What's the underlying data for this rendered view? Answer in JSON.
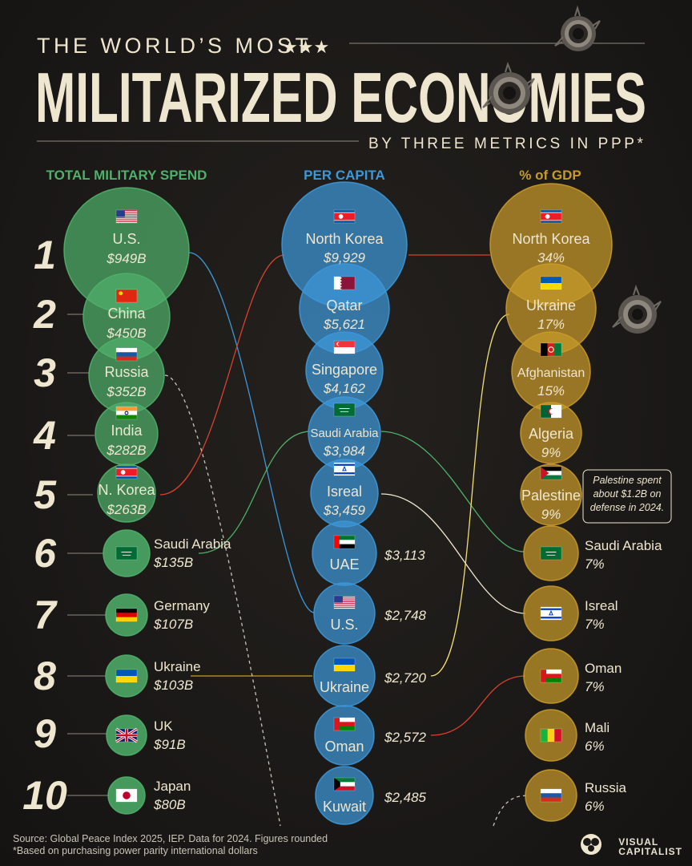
{
  "header": {
    "kicker": "THE WORLD’S MOST",
    "stars": "★★★",
    "title": "MILITARIZED ECONOMIES",
    "subtitle": "BY THREE METRICS IN PPP*"
  },
  "colors": {
    "spend": "#4fb06a",
    "percap": "#3d97d8",
    "gdp": "#c89a2a",
    "cream": "#efe6cf",
    "background": "#1b1917"
  },
  "columns": {
    "spend": "TOTAL MILITARY SPEND",
    "percap": "PER CAPITA",
    "gdp": "% of GDP"
  },
  "ranks": [
    "1",
    "2",
    "3",
    "4",
    "5",
    "6",
    "7",
    "8",
    "9",
    "10"
  ],
  "spend": [
    {
      "country": "U.S.",
      "value": "$949B",
      "flag": "flag-us"
    },
    {
      "country": "China",
      "value": "$450B",
      "flag": "flag-cn"
    },
    {
      "country": "Russia",
      "value": "$352B",
      "flag": "flag-ru"
    },
    {
      "country": "India",
      "value": "$282B",
      "flag": "flag-in"
    },
    {
      "country": "N. Korea",
      "value": "$263B",
      "flag": "flag-kp"
    },
    {
      "country": "Saudi Arabia",
      "value": "$135B",
      "flag": "flag-sa"
    },
    {
      "country": "Germany",
      "value": "$107B",
      "flag": "flag-de"
    },
    {
      "country": "Ukraine",
      "value": "$103B",
      "flag": "flag-ua"
    },
    {
      "country": "UK",
      "value": "$91B",
      "flag": "flag-gb"
    },
    {
      "country": "Japan",
      "value": "$80B",
      "flag": "flag-jp"
    }
  ],
  "percap": [
    {
      "country": "North Korea",
      "value": "$9,929",
      "flag": "flag-kp"
    },
    {
      "country": "Qatar",
      "value": "$5,621",
      "flag": "flag-qa"
    },
    {
      "country": "Singapore",
      "value": "$4,162",
      "flag": "flag-sg"
    },
    {
      "country": "Saudi Arabia",
      "value": "$3,984",
      "flag": "flag-sa"
    },
    {
      "country": "Isreal",
      "value": "$3,459",
      "flag": "flag-il"
    },
    {
      "country": "UAE",
      "value": "$3,113",
      "flag": "flag-ae"
    },
    {
      "country": "U.S.",
      "value": "$2,748",
      "flag": "flag-us"
    },
    {
      "country": "Ukraine",
      "value": "$2,720",
      "flag": "flag-ua"
    },
    {
      "country": "Oman",
      "value": "$2,572",
      "flag": "flag-om"
    },
    {
      "country": "Kuwait",
      "value": "$2,485",
      "flag": "flag-kw"
    }
  ],
  "gdp": [
    {
      "country": "North Korea",
      "value": "34%",
      "flag": "flag-kp"
    },
    {
      "country": "Ukraine",
      "value": "17%",
      "flag": "flag-ua"
    },
    {
      "country": "Afghanistan",
      "value": "15%",
      "flag": "flag-af"
    },
    {
      "country": "Algeria",
      "value": "9%",
      "flag": "flag-dz"
    },
    {
      "country": "Palestine",
      "value": "9%",
      "flag": "flag-ps"
    },
    {
      "country": "Saudi Arabia",
      "value": "7%",
      "flag": "flag-sa"
    },
    {
      "country": "Isreal",
      "value": "7%",
      "flag": "flag-il"
    },
    {
      "country": "Oman",
      "value": "7%",
      "flag": "flag-om"
    },
    {
      "country": "Mali",
      "value": "6%",
      "flag": "flag-ml"
    },
    {
      "country": "Russia",
      "value": "6%",
      "flag": "flag-ru"
    }
  ],
  "palestine_note": [
    "Palestine spent",
    "about $1.2B on",
    "defense in 2024."
  ],
  "source": {
    "line1": "Source: Global Peace Index 2025, IEP. Data for 2024. Figures rounded",
    "line2": "*Based on purchasing power parity international dollars"
  },
  "brand": {
    "line1": "VISUAL",
    "line2": "CAPITALIST"
  }
}
